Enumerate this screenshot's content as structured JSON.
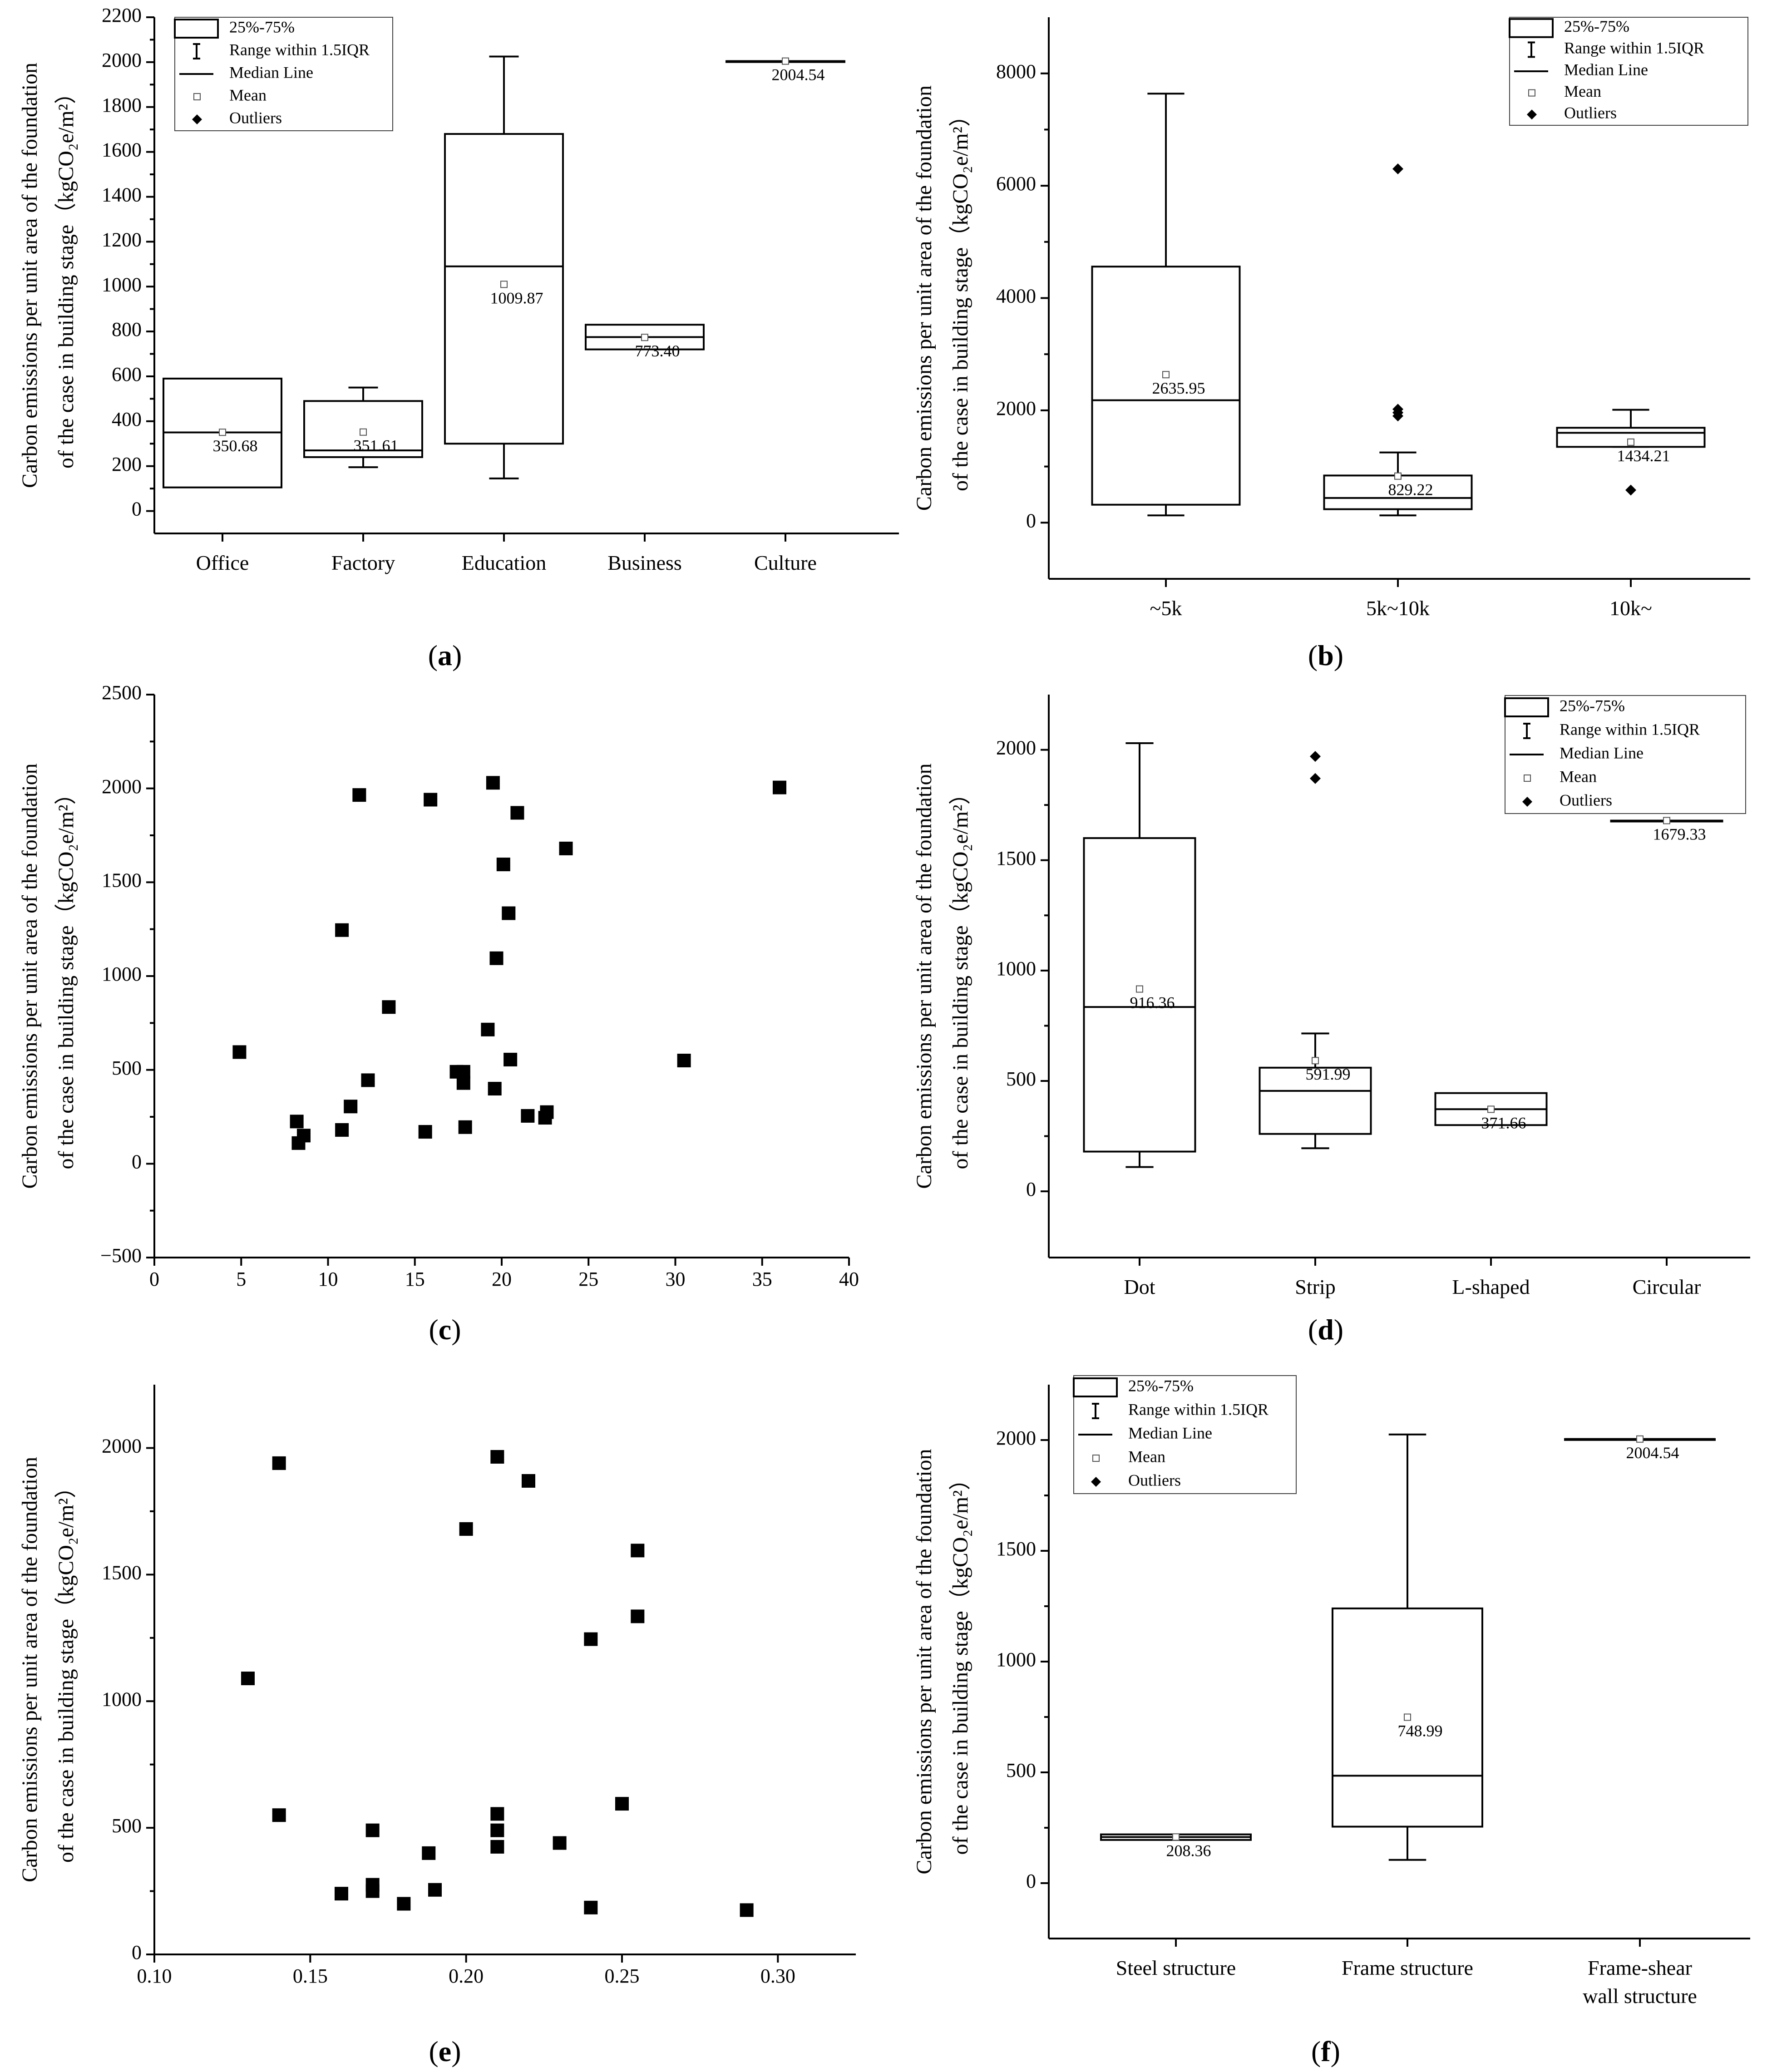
{
  "ylabel_line1": "Carbon emissions per unit area of the foundation",
  "ylabel_line2": "of the case in building stage（kgCO₂e/m²）",
  "legend": {
    "box": "25%-75%",
    "whisker": "Range within 1.5IQR",
    "median": "Median Line",
    "mean": "Mean",
    "outliers": "Outliers"
  },
  "chart_data": [
    {
      "id": "a",
      "panel_label": "(a)",
      "type": "box",
      "ylim": [
        -100,
        2200
      ],
      "yticks": [
        0,
        200,
        400,
        600,
        800,
        1000,
        1200,
        1400,
        1600,
        1800,
        2000,
        2200
      ],
      "categories": [
        "Office",
        "Factory",
        "Education",
        "Business",
        "Culture"
      ],
      "boxes": [
        {
          "q1": 105,
          "median": 350,
          "q3": 590,
          "mean": 350.68,
          "mean_label": "350.68"
        },
        {
          "q1": 240,
          "median": 270,
          "q3": 490,
          "wlo": 195,
          "whi": 550,
          "mean": 351.61,
          "mean_label": "351.61"
        },
        {
          "q1": 300,
          "median": 1090,
          "q3": 1680,
          "wlo": 145,
          "whi": 2025,
          "mean": 1009.87,
          "mean_label": "1009.87"
        },
        {
          "q1": 720,
          "median": 775,
          "q3": 830,
          "mean": 773.4,
          "mean_label": "773.40"
        },
        {
          "q1": 2004.54,
          "median": 2004.54,
          "q3": 2004.54,
          "mean": 2004.54,
          "mean_label": "2004.54"
        }
      ]
    },
    {
      "id": "b",
      "panel_label": "(b)",
      "type": "box",
      "ylim": [
        -1000,
        9000
      ],
      "yticks": [
        0,
        2000,
        4000,
        6000,
        8000
      ],
      "categories": [
        "~5k",
        "5k~10k",
        "10k~"
      ],
      "boxes": [
        {
          "q1": 320,
          "median": 2180,
          "q3": 4560,
          "wlo": 130,
          "whi": 7640,
          "mean": 2635.95,
          "mean_label": "2635.95"
        },
        {
          "q1": 240,
          "median": 440,
          "q3": 840,
          "wlo": 130,
          "whi": 1250,
          "mean": 829.22,
          "mean_label": "829.22",
          "outliers": [
            1900,
            1960,
            2020,
            6300
          ]
        },
        {
          "q1": 1350,
          "median": 1600,
          "q3": 1690,
          "wlo": 1350,
          "whi": 2010,
          "mean": 1434.21,
          "mean_label": "1434.21",
          "outliers": [
            580
          ]
        }
      ]
    },
    {
      "id": "c",
      "panel_label": "(c)",
      "type": "scatter",
      "xlim": [
        0,
        40
      ],
      "xticks": [
        0,
        5,
        10,
        15,
        20,
        25,
        30,
        35,
        40
      ],
      "ylim": [
        -500,
        2500
      ],
      "yticks": [
        -500,
        0,
        500,
        1000,
        1500,
        2000,
        2500
      ],
      "points": [
        [
          4.9,
          595
        ],
        [
          8.2,
          225
        ],
        [
          8.3,
          110
        ],
        [
          8.6,
          150
        ],
        [
          10.8,
          180
        ],
        [
          10.8,
          1245
        ],
        [
          11.3,
          305
        ],
        [
          11.8,
          1965
        ],
        [
          12.3,
          445
        ],
        [
          13.5,
          835
        ],
        [
          15.6,
          170
        ],
        [
          15.9,
          1940
        ],
        [
          17.4,
          490
        ],
        [
          17.8,
          490
        ],
        [
          17.8,
          430
        ],
        [
          17.9,
          195
        ],
        [
          19.2,
          715
        ],
        [
          19.5,
          2030
        ],
        [
          19.6,
          400
        ],
        [
          19.7,
          1095
        ],
        [
          20.1,
          1595
        ],
        [
          20.4,
          1335
        ],
        [
          20.5,
          555
        ],
        [
          20.9,
          1870
        ],
        [
          21.5,
          255
        ],
        [
          22.5,
          245
        ],
        [
          22.6,
          275
        ],
        [
          23.7,
          1680
        ],
        [
          30.5,
          550
        ],
        [
          36.0,
          2005
        ]
      ]
    },
    {
      "id": "d",
      "panel_label": "(d)",
      "type": "box",
      "ylim": [
        -300,
        2250
      ],
      "yticks": [
        0,
        500,
        1000,
        1500,
        2000
      ],
      "categories": [
        "Dot",
        "Strip",
        "L-shaped",
        "Circular"
      ],
      "boxes": [
        {
          "q1": 180,
          "median": 835,
          "q3": 1600,
          "wlo": 110,
          "whi": 2030,
          "mean": 916.36,
          "mean_label": "916.36"
        },
        {
          "q1": 260,
          "median": 455,
          "q3": 560,
          "wlo": 195,
          "whi": 715,
          "mean": 591.99,
          "mean_label": "591.99",
          "outliers": [
            1870,
            1970
          ]
        },
        {
          "q1": 300,
          "median": 372,
          "q3": 445,
          "mean": 371.66,
          "mean_label": "371.66"
        },
        {
          "q1": 1679.33,
          "median": 1679.33,
          "q3": 1679.33,
          "mean": 1679.33,
          "mean_label": "1679.33"
        }
      ]
    },
    {
      "id": "e",
      "panel_label": "(e)",
      "type": "scatter",
      "xlim": [
        0.1,
        0.325
      ],
      "xticks": [
        0.1,
        0.15,
        0.2,
        0.25,
        0.3
      ],
      "xticklabels": [
        "0.10",
        "0.15",
        "0.20",
        "0.25",
        "0.30"
      ],
      "ylim": [
        0,
        2250
      ],
      "yticks": [
        0,
        500,
        1000,
        1500,
        2000
      ],
      "points": [
        [
          0.13,
          1090
        ],
        [
          0.14,
          1940
        ],
        [
          0.14,
          550
        ],
        [
          0.16,
          240
        ],
        [
          0.17,
          490
        ],
        [
          0.17,
          275
        ],
        [
          0.17,
          250
        ],
        [
          0.18,
          200
        ],
        [
          0.188,
          400
        ],
        [
          0.19,
          255
        ],
        [
          0.2,
          1680
        ],
        [
          0.21,
          1965
        ],
        [
          0.21,
          555
        ],
        [
          0.21,
          490
        ],
        [
          0.21,
          425
        ],
        [
          0.22,
          1870
        ],
        [
          0.23,
          440
        ],
        [
          0.24,
          1245
        ],
        [
          0.24,
          185
        ],
        [
          0.25,
          595
        ],
        [
          0.255,
          1595
        ],
        [
          0.255,
          1335
        ],
        [
          0.29,
          175
        ]
      ]
    },
    {
      "id": "f",
      "panel_label": "(f)",
      "type": "box",
      "ylim": [
        -250,
        2250
      ],
      "yticks": [
        0,
        500,
        1000,
        1500,
        2000
      ],
      "categories": [
        "Steel structure",
        "Frame structure",
        "Frame-shear\nwall structure"
      ],
      "boxes": [
        {
          "q1": 195,
          "median": 208,
          "q3": 220,
          "mean": 208.36,
          "mean_label": "208.36"
        },
        {
          "q1": 255,
          "median": 485,
          "q3": 1240,
          "wlo": 105,
          "whi": 2025,
          "mean": 748.99,
          "mean_label": "748.99"
        },
        {
          "q1": 2004.54,
          "median": 2004.54,
          "q3": 2004.54,
          "mean": 2004.54,
          "mean_label": "2004.54"
        }
      ]
    }
  ]
}
